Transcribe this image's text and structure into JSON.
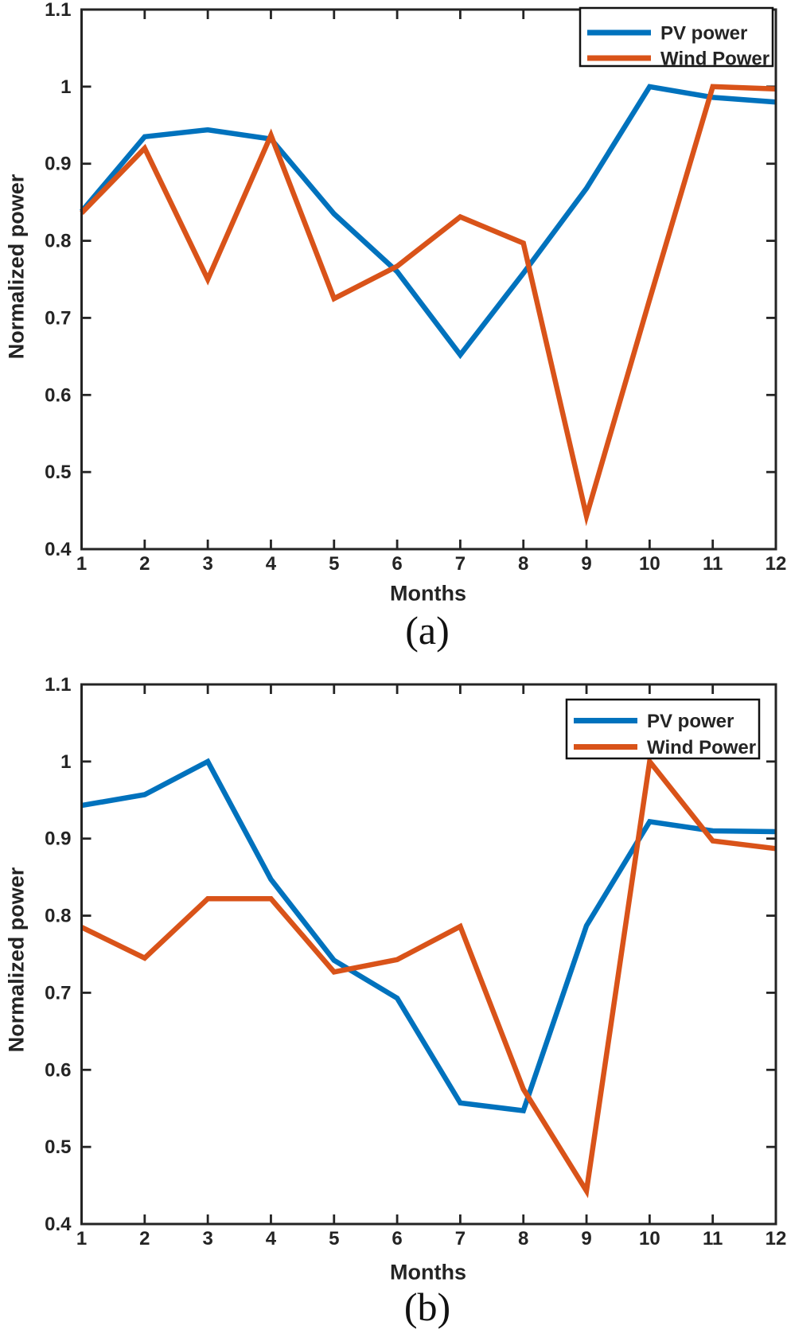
{
  "figure": {
    "background": "#ffffff",
    "axis_color": "#242424",
    "text_color": "#242424"
  },
  "chart_data": [
    {
      "id": "a",
      "type": "line",
      "caption": "(a)",
      "xlabel": "Months",
      "ylabel": "Normalized power",
      "x": [
        1,
        2,
        3,
        4,
        5,
        6,
        7,
        8,
        9,
        10,
        11,
        12
      ],
      "xtick_labels": [
        "1",
        "2",
        "3",
        "4",
        "5",
        "6",
        "7",
        "8",
        "9",
        "10",
        "11",
        "12"
      ],
      "xlim": [
        1,
        12
      ],
      "ylim": [
        0.4,
        1.1
      ],
      "yticks": [
        0.4,
        0.5,
        0.6,
        0.7,
        0.8,
        0.9,
        1.0,
        1.1
      ],
      "ytick_labels": [
        "0.4",
        "0.5",
        "0.6",
        "0.7",
        "0.8",
        "0.9",
        "1",
        "1.1"
      ],
      "grid": false,
      "legend_position": "top-right",
      "series": [
        {
          "name": "PV power",
          "color": "#0072BD",
          "values": [
            0.838,
            0.935,
            0.944,
            0.932,
            0.835,
            0.76,
            0.652,
            0.758,
            0.868,
            1.0,
            0.986,
            0.98
          ]
        },
        {
          "name": "Wind Power",
          "color": "#D95319",
          "values": [
            0.836,
            0.92,
            0.75,
            0.937,
            0.725,
            0.767,
            0.831,
            0.797,
            0.443,
            0.724,
            1.0,
            0.997
          ]
        }
      ]
    },
    {
      "id": "b",
      "type": "line",
      "caption": "(b)",
      "xlabel": "Months",
      "ylabel": "Normalized power",
      "x": [
        1,
        2,
        3,
        4,
        5,
        6,
        7,
        8,
        9,
        10,
        11,
        12
      ],
      "xtick_labels": [
        "1",
        "2",
        "3",
        "4",
        "5",
        "6",
        "7",
        "8",
        "9",
        "10",
        "11",
        "12"
      ],
      "xlim": [
        1,
        12
      ],
      "ylim": [
        0.4,
        1.1
      ],
      "yticks": [
        0.4,
        0.5,
        0.6,
        0.7,
        0.8,
        0.9,
        1.0,
        1.1
      ],
      "ytick_labels": [
        "0.4",
        "0.5",
        "0.6",
        "0.7",
        "0.8",
        "0.9",
        "1",
        "1.1"
      ],
      "grid": false,
      "legend_position": "top-right",
      "series": [
        {
          "name": "PV power",
          "color": "#0072BD",
          "values": [
            0.943,
            0.957,
            1.0,
            0.847,
            0.742,
            0.693,
            0.557,
            0.547,
            0.787,
            0.922,
            0.91,
            0.909
          ]
        },
        {
          "name": "Wind Power",
          "color": "#D95319",
          "values": [
            0.785,
            0.745,
            0.822,
            0.822,
            0.727,
            0.743,
            0.786,
            0.575,
            0.443,
            1.0,
            0.897,
            0.887
          ]
        }
      ]
    }
  ]
}
